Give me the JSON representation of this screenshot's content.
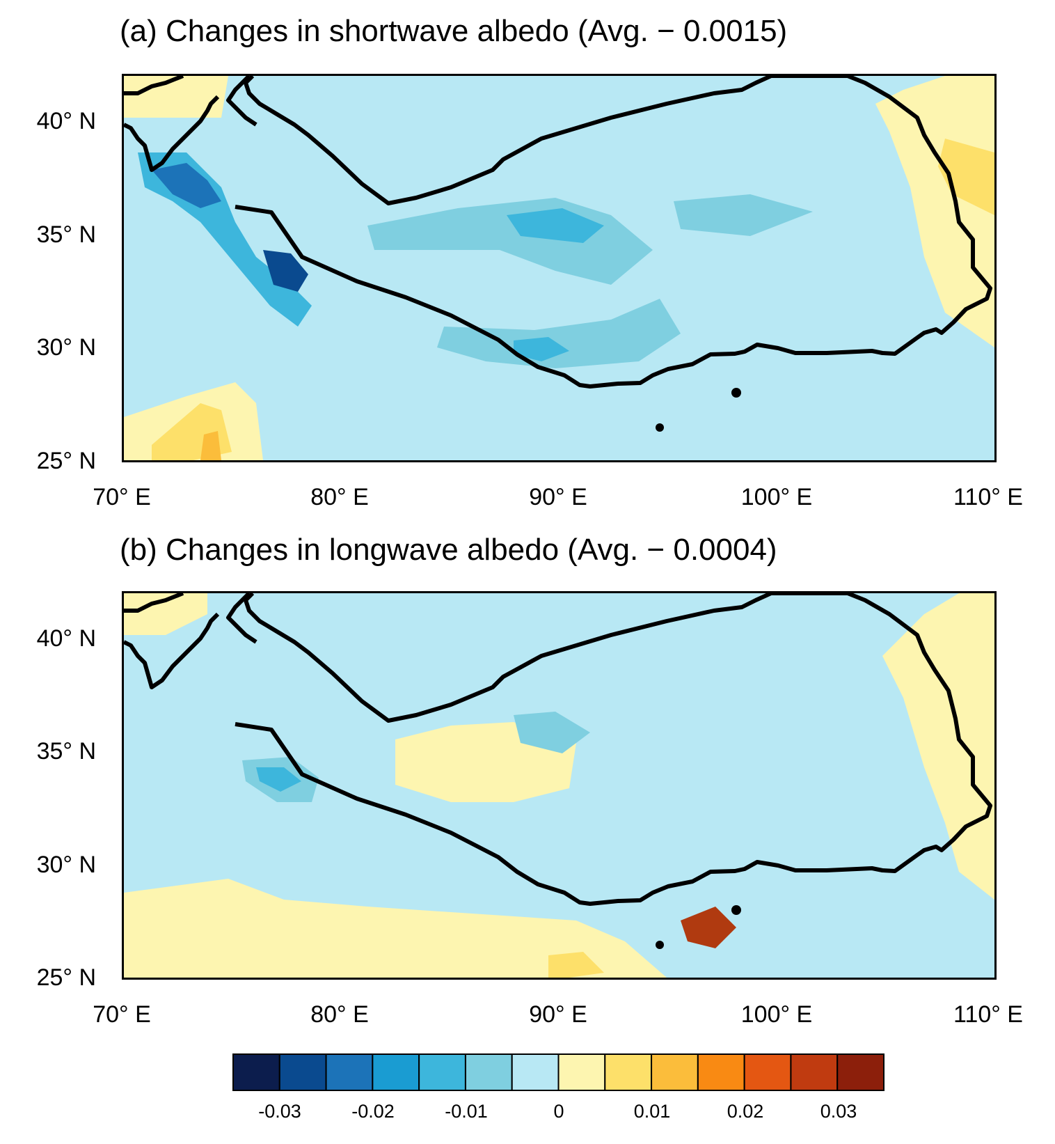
{
  "panels": [
    {
      "title": "(a) Changes in shortwave albedo (Avg. − 0.0015)",
      "lat_labels": [
        "40° N",
        "35° N",
        "30° N",
        "25° N"
      ],
      "lon_labels": [
        "70° E",
        "80° E",
        "90° E",
        "100° E",
        "110° E"
      ]
    },
    {
      "title": "(b) Changes in longwave albedo (Avg. − 0.0004)",
      "lat_labels": [
        "40° N",
        "35° N",
        "30° N",
        "25° N"
      ],
      "lon_labels": [
        "70° E",
        "80° E",
        "90° E",
        "100° E",
        "110° E"
      ]
    }
  ],
  "colorbar": {
    "labels": [
      "-0.03",
      "-0.02",
      "-0.01",
      "0",
      "0.01",
      "0.02",
      "0.03"
    ],
    "colors": [
      "#0c1d4d",
      "#0a4a8f",
      "#1c73b8",
      "#1a9cd2",
      "#3db6dc",
      "#7fcfe0",
      "#b8e8f4",
      "#fdf5b0",
      "#fde06a",
      "#fbbd3b",
      "#f98a13",
      "#e45712",
      "#c03b10",
      "#8c1f0b"
    ]
  },
  "colors": {
    "neg_weak": "#b8e8f4",
    "neg_mid": "#7fcfe0",
    "neg_strong": "#3db6dc",
    "neg_deep": "#1c73b8",
    "neg_darkest": "#0a4a8f",
    "pos_weak": "#fdf5b0",
    "pos_mid": "#fde06a",
    "pos_strong": "#fbbd3b",
    "pos_hot": "#b03a10",
    "boundary": "#000000"
  }
}
